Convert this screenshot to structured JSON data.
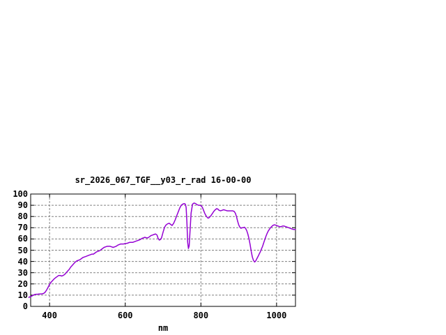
{
  "page": {
    "background": "#ffffff"
  },
  "chart_data": {
    "type": "line",
    "title": "sr_2026_067_TGF__y03_r_rad 16-00-00",
    "xlabel": "nm",
    "ylabel": "",
    "xlim": [
      350,
      1050
    ],
    "ylim": [
      0,
      100
    ],
    "x_ticks": [
      400,
      600,
      800,
      1000
    ],
    "y_ticks": [
      0,
      10,
      20,
      30,
      40,
      50,
      60,
      70,
      80,
      90,
      100
    ],
    "grid": true,
    "legend_position": "none",
    "colors": {
      "line": "#9400D3",
      "grid": "#808080",
      "frame": "#000000",
      "text": "#000000"
    },
    "series": [
      {
        "x": [
          345,
          348,
          352,
          356,
          360,
          364,
          368,
          372,
          376,
          380,
          384,
          388,
          392,
          396,
          400,
          404,
          408,
          412,
          416,
          420,
          424,
          428,
          432,
          436,
          440,
          444,
          448,
          452,
          456,
          460,
          464,
          468,
          472,
          476,
          480,
          484,
          488,
          492,
          496,
          500,
          504,
          508,
          512,
          516,
          520,
          524,
          528,
          532,
          536,
          540,
          544,
          548,
          552,
          556,
          560,
          564,
          568,
          572,
          576,
          580,
          584,
          588,
          592,
          596,
          600,
          604,
          608,
          612,
          616,
          620,
          624,
          628,
          632,
          636,
          640,
          644,
          648,
          652,
          656,
          660,
          664,
          668,
          672,
          676,
          680,
          684,
          687,
          690,
          693,
          696,
          700,
          704,
          708,
          712,
          716,
          720,
          724,
          728,
          732,
          736,
          740,
          744,
          748,
          752,
          756,
          759,
          761,
          763,
          765,
          767,
          769,
          771,
          774,
          778,
          782,
          786,
          790,
          794,
          798,
          801,
          804,
          807,
          810,
          813,
          816,
          819,
          822,
          826,
          830,
          834,
          838,
          842,
          845,
          848,
          852,
          856,
          860,
          865,
          870,
          875,
          880,
          884,
          888,
          891,
          894,
          897,
          900,
          903,
          906,
          909,
          912,
          915,
          918,
          921,
          924,
          927,
          930,
          933,
          936,
          939,
          942,
          945,
          948,
          951,
          954,
          957,
          960,
          963,
          966,
          969,
          972,
          975,
          978,
          981,
          984,
          987,
          990,
          993,
          996,
          1000,
          1004,
          1008,
          1012,
          1016,
          1020,
          1024,
          1028,
          1032,
          1036,
          1040,
          1044,
          1048,
          1050
        ],
        "y": [
          8,
          8.5,
          9,
          9.8,
          10.5,
          10.8,
          10.8,
          11,
          11,
          11.2,
          11.5,
          12.5,
          14.5,
          17,
          19.5,
          21.5,
          23,
          24.5,
          25.5,
          26.5,
          27.5,
          27.5,
          27,
          27.5,
          28.5,
          30,
          31.5,
          33,
          35,
          36.5,
          38,
          39.5,
          40.5,
          41,
          41.5,
          42.5,
          43.5,
          44,
          44.5,
          45,
          45.5,
          46,
          46.5,
          46.5,
          47.5,
          48.5,
          49,
          49.5,
          50.5,
          51.5,
          52.5,
          53,
          53.5,
          53.5,
          53.5,
          53,
          52.5,
          53,
          53.5,
          54.5,
          55,
          55.5,
          55.5,
          55.5,
          56,
          56,
          56.5,
          57,
          57,
          57,
          57.5,
          58,
          58.5,
          59,
          59.5,
          60.5,
          61,
          61.5,
          61,
          61,
          62,
          63,
          63.5,
          64,
          64.5,
          63.5,
          60.5,
          59,
          59.5,
          61,
          66,
          70.5,
          72.5,
          73.5,
          74,
          73,
          72,
          74,
          77,
          80.5,
          84,
          87.5,
          90,
          91,
          91.5,
          91,
          88,
          75,
          57,
          51.5,
          54,
          65,
          83,
          91,
          92,
          91.5,
          90.5,
          90,
          90,
          89.5,
          88,
          85.5,
          83,
          81,
          79.5,
          78.5,
          79,
          80.5,
          82.5,
          84.5,
          86,
          87,
          86.5,
          85.5,
          85,
          85.5,
          86,
          85.5,
          85,
          85,
          85,
          85,
          84.5,
          83,
          80,
          76,
          72.5,
          70.5,
          69.5,
          70,
          70,
          70.5,
          69.5,
          67.5,
          64.5,
          60.5,
          55,
          49,
          44,
          41,
          39.5,
          40.5,
          42.5,
          44.5,
          46.5,
          48.5,
          51,
          53.5,
          56.5,
          59.5,
          62.5,
          65,
          67,
          68.5,
          70,
          71,
          72,
          72.5,
          72.5,
          72,
          71.5,
          71,
          71,
          71.5,
          71.5,
          71,
          70.5,
          70,
          69.5,
          69,
          68.5,
          68.5,
          68.5
        ]
      }
    ]
  }
}
